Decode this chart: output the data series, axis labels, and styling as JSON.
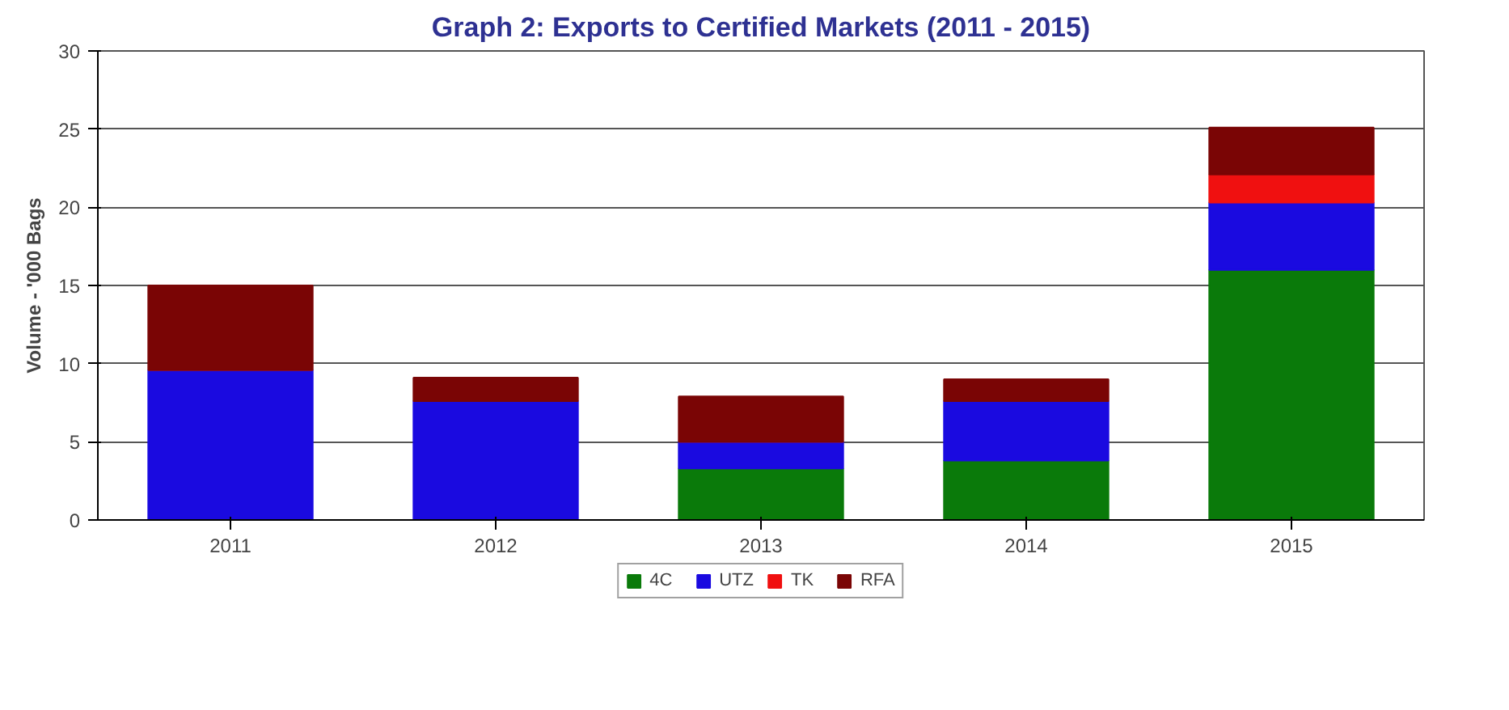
{
  "chart_data": {
    "type": "bar",
    "title": "Graph 2: Exports to Certified Markets (2011 - 2015)",
    "ylabel": "Volume - '000 Bags",
    "categories": [
      "2011",
      "2012",
      "2013",
      "2014",
      "2015"
    ],
    "stacked": true,
    "ylim": [
      0,
      30
    ],
    "yticks": [
      0,
      5,
      10,
      15,
      20,
      25,
      30
    ],
    "grid": "y",
    "legend": "bottom",
    "series": [
      {
        "name": "4C",
        "color": "#0a7a0a",
        "values": [
          0,
          0,
          3.3,
          3.8,
          16.0
        ]
      },
      {
        "name": "UTZ",
        "color": "#1a0ae0",
        "values": [
          9.6,
          7.6,
          1.7,
          3.8,
          4.3
        ]
      },
      {
        "name": "TK",
        "color": "#f01010",
        "values": [
          0,
          0,
          0,
          0,
          1.8
        ]
      },
      {
        "name": "RFA",
        "color": "#7a0505",
        "values": [
          5.4,
          1.5,
          2.9,
          1.4,
          3.0
        ]
      }
    ]
  }
}
